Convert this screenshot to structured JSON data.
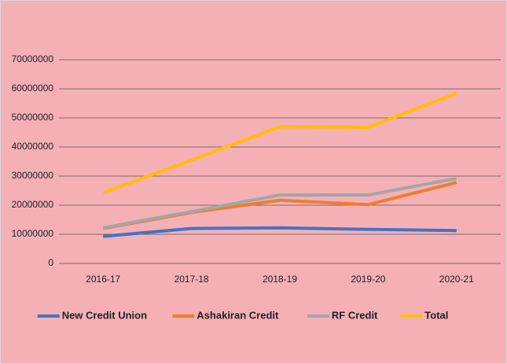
{
  "chart_data": {
    "type": "line",
    "categories": [
      "2016-17",
      "2017-18",
      "2018-19",
      "2019-20",
      "2020-21"
    ],
    "series": [
      {
        "name": "New Credit Union",
        "color": "#4472c4",
        "values": [
          9300000,
          12000000,
          12200000,
          11700000,
          11300000
        ]
      },
      {
        "name": "Ashakiran Credit",
        "color": "#ed7d31",
        "values": [
          12000000,
          17500000,
          21700000,
          20200000,
          27800000
        ]
      },
      {
        "name": "RF Credit",
        "color": "#a5a5a5",
        "values": [
          12200000,
          17800000,
          23500000,
          23500000,
          29200000
        ]
      },
      {
        "name": "Total",
        "color": "#ffc000",
        "values": [
          24300000,
          35500000,
          47000000,
          46800000,
          58500000
        ]
      }
    ],
    "ylim": [
      0,
      70000000
    ],
    "yticks": [
      0,
      10000000,
      20000000,
      30000000,
      40000000,
      50000000,
      60000000,
      70000000
    ],
    "grid": true,
    "legend": "bottom"
  }
}
